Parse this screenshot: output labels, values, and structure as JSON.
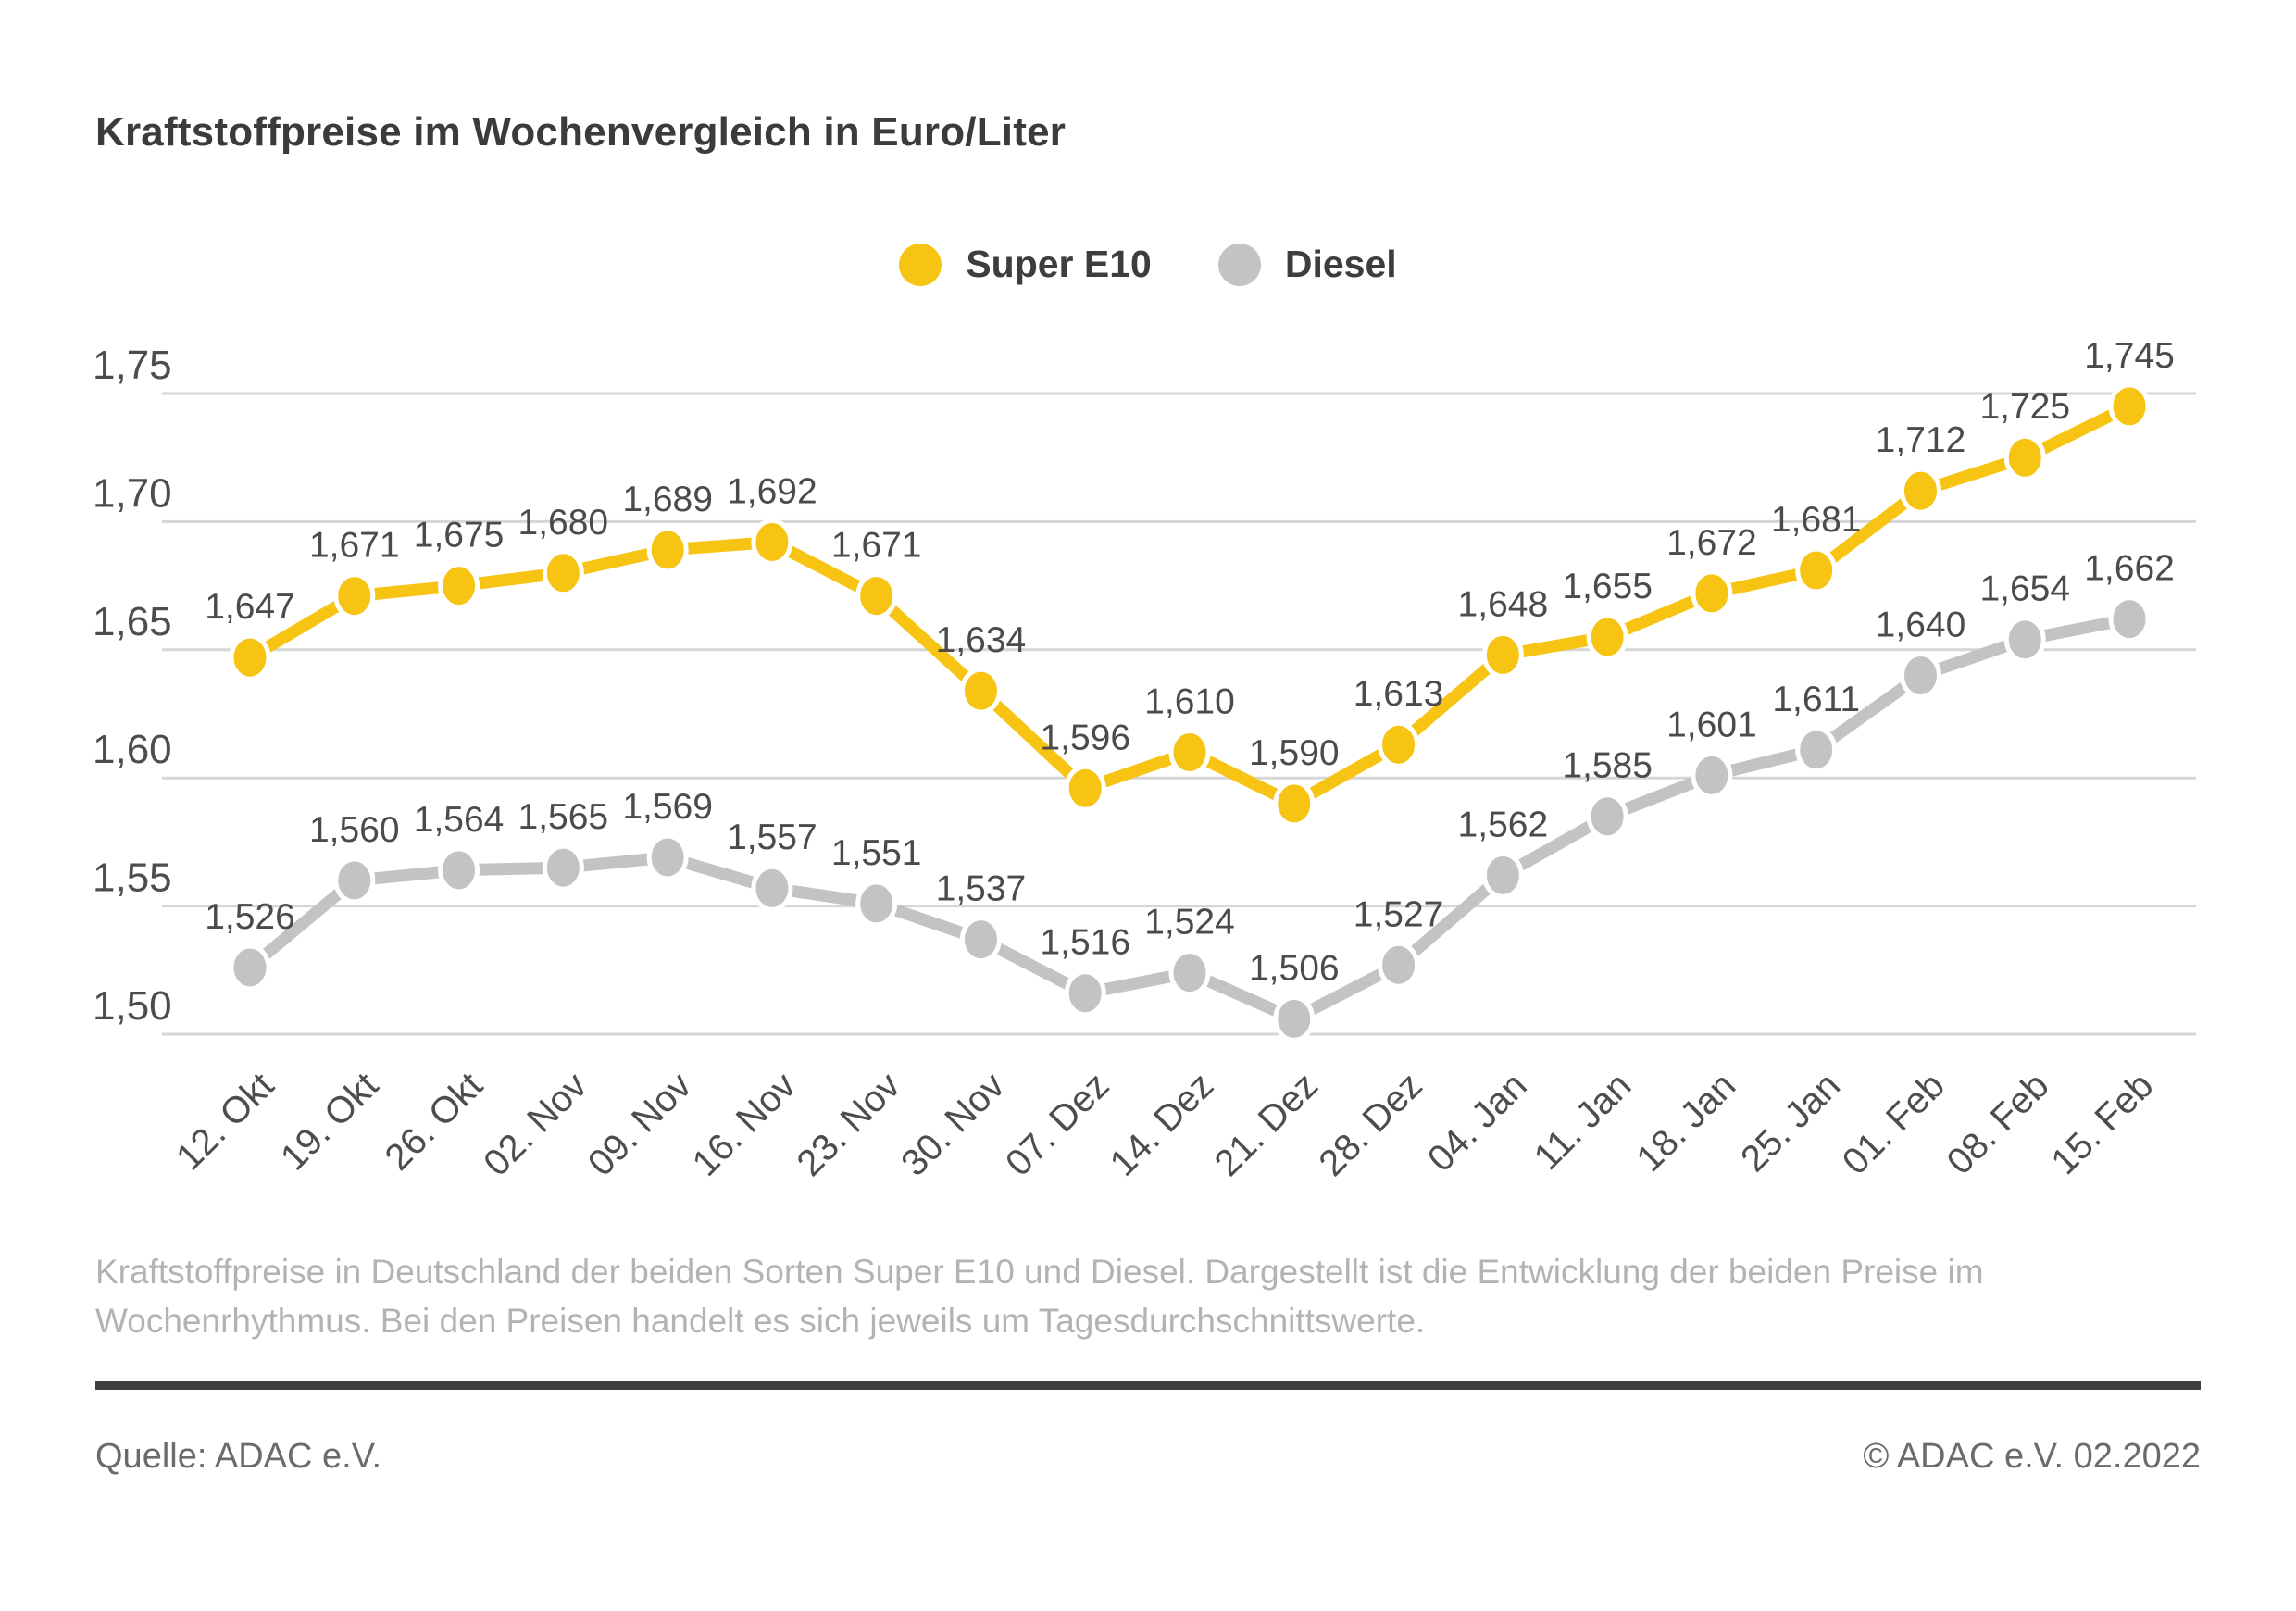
{
  "title": "Kraftstoffpreise im Wochenvergleich in Euro/Liter",
  "chart_data": {
    "type": "line",
    "title": "Kraftstoffpreise im Wochenvergleich in Euro/Liter",
    "xlabel": "",
    "ylabel": "Euro/Liter",
    "ylim": [
      1.5,
      1.75
    ],
    "grid": true,
    "legend_position": "top-center",
    "categories": [
      "12. Okt",
      "19. Okt",
      "26. Okt",
      "02. Nov",
      "09. Nov",
      "16. Nov",
      "23. Nov",
      "30. Nov",
      "07. Dez",
      "14. Dez",
      "21. Dez",
      "28. Dez",
      "04. Jan",
      "11. Jan",
      "18. Jan",
      "25. Jan",
      "01. Feb",
      "08. Feb",
      "15. Feb"
    ],
    "yticks": {
      "values": [
        1.75,
        1.7,
        1.65,
        1.6,
        1.55,
        1.5
      ],
      "labels": [
        "1,75",
        "1,70",
        "1,65",
        "1,60",
        "1,55",
        "1,50"
      ]
    },
    "series": [
      {
        "name": "Super E10",
        "color": "#F7C413",
        "values": [
          1.647,
          1.671,
          1.675,
          1.68,
          1.689,
          1.692,
          1.671,
          1.634,
          1.596,
          1.61,
          1.59,
          1.613,
          1.648,
          1.655,
          1.672,
          1.681,
          1.712,
          1.725,
          1.745
        ],
        "labels": [
          "1,647",
          "1,671",
          "1,675",
          "1,680",
          "1,689",
          "1,692",
          "1,671",
          "1,634",
          "1,596",
          "1,610",
          "1,590",
          "1,613",
          "1,648",
          "1,655",
          "1,672",
          "1,681",
          "1,712",
          "1,725",
          "1,745"
        ]
      },
      {
        "name": "Diesel",
        "color": "#C3C3C3",
        "values": [
          1.526,
          1.56,
          1.564,
          1.565,
          1.569,
          1.557,
          1.551,
          1.537,
          1.516,
          1.524,
          1.506,
          1.527,
          1.562,
          1.585,
          1.601,
          1.611,
          1.64,
          1.654,
          1.662
        ],
        "labels": [
          "1,526",
          "1,560",
          "1,564",
          "1,565",
          "1,569",
          "1,557",
          "1,551",
          "1,537",
          "1,516",
          "1,524",
          "1,506",
          "1,527",
          "1,562",
          "1,585",
          "1,601",
          "1,611",
          "1,640",
          "1,654",
          "1,662"
        ]
      }
    ],
    "colors": {
      "gridline": "#D6D6D6",
      "tick_label": "#4d4d4d",
      "data_label": "#4b4b4b"
    }
  },
  "caption": {
    "line1": "Kraftstoffpreise in Deutschland der beiden Sorten Super E10 und Diesel. Dargestellt ist die Entwicklung der beiden Preise im",
    "line2": "Wochenrhythmus. Bei den Preisen handelt es sich jeweils um Tagesdurchschnittswerte."
  },
  "footer": {
    "source": "Quelle: ADAC e.V.",
    "copyright": "© ADAC e.V. 02.2022"
  }
}
